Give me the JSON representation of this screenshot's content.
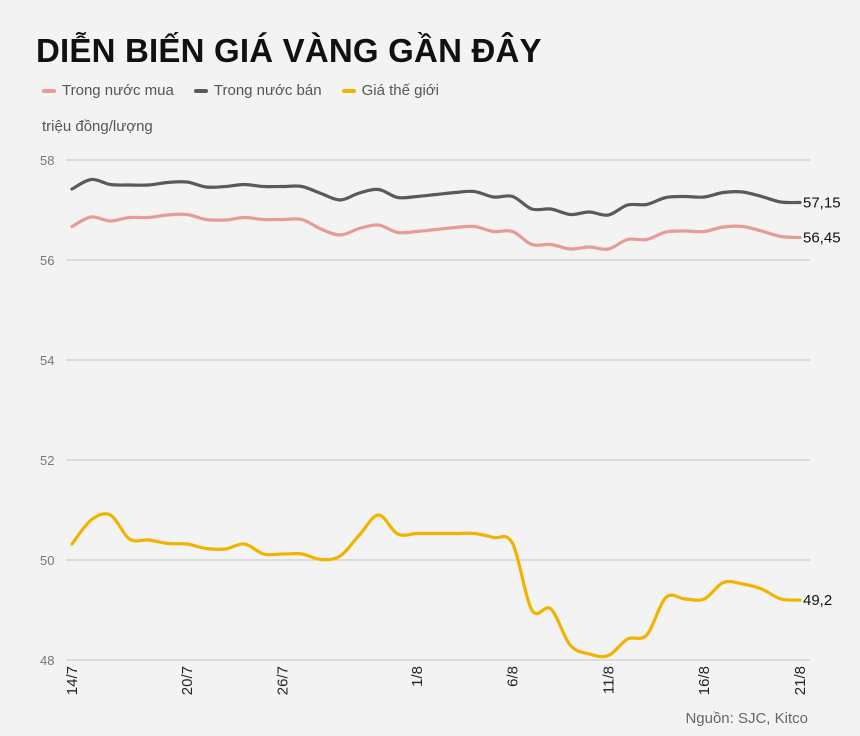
{
  "chart_data": {
    "type": "line",
    "title": "DIỄN BIẾN GIÁ VÀNG GẦN ĐÂY",
    "ylabel": "triệu đồng/lượng",
    "xlabel": "",
    "ylim": [
      48,
      58
    ],
    "yticks": [
      "48",
      "50",
      "52",
      "54",
      "56",
      "58"
    ],
    "grid": true,
    "legend_position": "top-left",
    "x_tick_labels": [
      {
        "label": "14/7",
        "index": 0
      },
      {
        "label": "20/7",
        "index": 6
      },
      {
        "label": "26/7",
        "index": 11
      },
      {
        "label": "1/8",
        "index": 18
      },
      {
        "label": "6/8",
        "index": 23
      },
      {
        "label": "11/8",
        "index": 28
      },
      {
        "label": "16/8",
        "index": 33
      },
      {
        "label": "21/8",
        "index": 38
      }
    ],
    "series": [
      {
        "name": "Trong nước mua",
        "color": "#e89a96",
        "end_label": "56,45",
        "values": [
          56.67,
          56.86,
          56.78,
          56.85,
          56.85,
          56.9,
          56.91,
          56.81,
          56.8,
          56.85,
          56.81,
          56.81,
          56.81,
          56.62,
          56.5,
          56.63,
          56.7,
          56.55,
          56.57,
          56.61,
          56.65,
          56.67,
          56.57,
          56.57,
          56.31,
          56.31,
          56.22,
          56.26,
          56.22,
          56.41,
          56.41,
          56.56,
          56.58,
          56.57,
          56.66,
          56.67,
          56.58,
          56.47,
          56.45
        ]
      },
      {
        "name": "Trong nước bán",
        "color": "#5a5a5a",
        "end_label": "57,15",
        "values": [
          57.42,
          57.61,
          57.51,
          57.5,
          57.5,
          57.55,
          57.56,
          57.46,
          57.47,
          57.51,
          57.47,
          57.47,
          57.47,
          57.33,
          57.2,
          57.34,
          57.41,
          57.25,
          57.27,
          57.31,
          57.35,
          57.37,
          57.26,
          57.27,
          57.02,
          57.02,
          56.91,
          56.96,
          56.9,
          57.1,
          57.11,
          57.25,
          57.27,
          57.26,
          57.35,
          57.36,
          57.27,
          57.16,
          57.15
        ]
      },
      {
        "name": "Giá thế giới",
        "color": "#f0b400",
        "end_label": "49,2",
        "values": [
          50.32,
          50.8,
          50.9,
          50.42,
          50.4,
          50.33,
          50.32,
          50.23,
          50.22,
          50.32,
          50.12,
          50.12,
          50.12,
          50.01,
          50.08,
          50.5,
          50.9,
          50.52,
          50.53,
          50.53,
          50.53,
          50.53,
          50.45,
          50.33,
          49.0,
          49.02,
          48.3,
          48.12,
          48.09,
          48.42,
          48.5,
          49.25,
          49.22,
          49.22,
          49.55,
          49.52,
          49.42,
          49.22,
          49.2
        ]
      }
    ],
    "source": "Nguồn: SJC, Kitco"
  }
}
